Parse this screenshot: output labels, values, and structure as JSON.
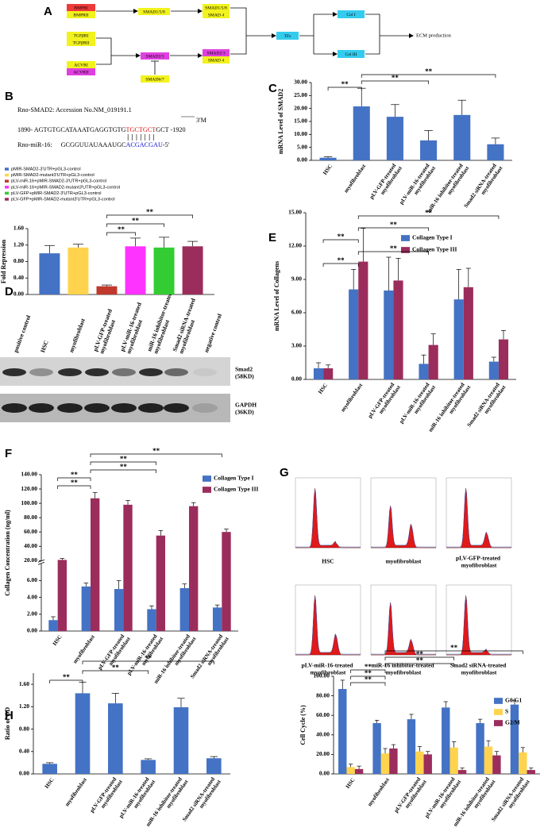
{
  "pathway": {
    "panel": "A",
    "nodes": [
      {
        "label": "BMPRI",
        "color": "#ee3a3a"
      },
      {
        "label": "BMPRII",
        "color": "#f2f21e"
      },
      {
        "label": "SMAD1/5/8",
        "color": "#f2f21e"
      },
      {
        "label": "SMAD1/5/8",
        "color": "#f2f21e"
      },
      {
        "label": "SMAD 4",
        "color": "#f2f21e"
      },
      {
        "label": "TGFβRI",
        "color": "#f2f21e"
      },
      {
        "label": "TGFβRII",
        "color": "#f2f21e"
      },
      {
        "label": "ACVRI",
        "color": "#f2f21e"
      },
      {
        "label": "ACVRII",
        "color": "#e040e0"
      },
      {
        "label": "SMAD2/3",
        "color": "#e040e0"
      },
      {
        "label": "SMAD6/7",
        "color": "#f2f21e"
      },
      {
        "label": "SMAD2/3",
        "color": "#e040e0"
      },
      {
        "label": "SMAD 4",
        "color": "#f2f21e"
      },
      {
        "label": "TFs",
        "color": "#33ccee"
      },
      {
        "label": "Col I",
        "color": "#33ccee"
      },
      {
        "label": "Col III",
        "color": "#33ccee"
      }
    ],
    "output": "ECM production"
  },
  "sequence": {
    "panel": "B",
    "accession": "Rno-SMAD2: Accession No.NM_019191.1",
    "end": "3'M",
    "target": {
      "prefix": "1890- AGTGTGCATAAATGAGGTGTG",
      "site": "TGCTGCT",
      "suffix": "GCT -1920"
    },
    "mirna": {
      "name": "Rno-miR-16:",
      "prefix": "GCGGUUAUAAAUGC",
      "seed": "ACGACGAU",
      "suffix": "-5'"
    }
  },
  "western_blot": {
    "panel": "D",
    "lanes": [
      "positive control",
      "HSC",
      "myofibroblast",
      "pLV-GFP-treated\nmyofibroblast",
      "pLV-miR-16-treated\nmyofibroblast",
      "miR-16 inhibitor-treated\nmyofibroblast",
      "Smad2 siRNA-treated\nmyofibroblast",
      "negative control"
    ],
    "bands": [
      "Smad2\n(58KD)",
      "GAPDH\n(36KD)"
    ]
  },
  "cell_cycle_histograms": {
    "panel": "G",
    "labels": [
      "HSC",
      "myofibroblast",
      "pLV-GFP-treated\nmyofibroblast",
      "pLV-miR-16-treated\nmyofibroblast",
      "miR-16 inhibitor-treated\nmyofibroblast",
      "Smad2 siRNA-treated\nmyofibroblast"
    ]
  },
  "chart_data": [
    {
      "type": "bar",
      "ylabel": "Fold Repression",
      "categories": [
        null
      ],
      "series": [
        {
          "name": "pMIR-SMAD2-3'UTR+pGL3-control",
          "color": "#4472c4",
          "values": [
            1.0
          ],
          "errors": [
            0.19
          ]
        },
        {
          "name": "pMIR-SMAD2-mutant3'UTR+pGL3-control",
          "color": "#ffd34d",
          "values": [
            1.14
          ],
          "errors": [
            0.08
          ]
        },
        {
          "name": "pLV-miR-16+pMIR-SMAD2-3'UTR+pGL3-control",
          "color": "#c0392b",
          "values": [
            0.2
          ],
          "errors": [
            0.03
          ]
        },
        {
          "name": "pLV-miR-16+pMIR-SMAD2-mutant3'UTR+pGL3-control",
          "color": "#ff33ff",
          "values": [
            1.17
          ],
          "errors": [
            0.2
          ]
        },
        {
          "name": "pLV-GFP+pMIR-SMAD2-3'UTR+pGL3-control",
          "color": "#33cc33",
          "values": [
            1.14
          ],
          "errors": [
            0.25
          ]
        },
        {
          "name": "pLV-GFP+pMIR-SMAD2-mutant3'UTR+pGL3-control",
          "color": "#9b2d5c",
          "values": [
            1.17
          ],
          "errors": [
            0.12
          ]
        }
      ],
      "ylim": [
        0,
        1.6
      ],
      "yticks": [
        {
          "value": 0,
          "label": "0.00"
        },
        {
          "value": 0.4,
          "label": "0.40"
        },
        {
          "value": 0.8,
          "label": "0.80"
        },
        {
          "value": 1.2,
          "label": "1.20"
        },
        {
          "value": 1.6,
          "label": "1.60"
        }
      ],
      "annotations": [
        {
          "text": "**",
          "between": [
            2,
            3
          ]
        },
        {
          "text": "**",
          "between": [
            2,
            4
          ]
        },
        {
          "text": "**",
          "between": [
            2,
            5
          ]
        }
      ]
    },
    {
      "type": "bar",
      "panel": "C",
      "ylabel": "mRNA Level of SMAD2",
      "categories": [
        "HSC",
        "myofibroblast",
        "pLV-GFP-treated\nmyofibroblast",
        "pLV-miR-16-treated\nmyofibroblast",
        "miR-16 inhibitor-treated\nmyofibroblast",
        "Smad2 siRNA-treated\nmyofibroblast"
      ],
      "values": [
        1.0,
        20.8,
        16.8,
        7.7,
        17.5,
        6.2
      ],
      "errors": [
        0.4,
        7.0,
        4.7,
        3.8,
        5.7,
        2.4
      ],
      "color": "#4472c4",
      "ylim": [
        0,
        30
      ],
      "yticks": [
        {
          "value": 0,
          "label": "0.00"
        },
        {
          "value": 5,
          "label": "5.00"
        },
        {
          "value": 10,
          "label": "10.00"
        },
        {
          "value": 15,
          "label": "15.00"
        },
        {
          "value": 20,
          "label": "20.00"
        },
        {
          "value": 25,
          "label": "25.00"
        },
        {
          "value": 30,
          "label": "30.00"
        }
      ],
      "annotations": [
        {
          "text": "**",
          "between": [
            0,
            1
          ]
        },
        {
          "text": "**",
          "between": [
            1,
            3
          ]
        },
        {
          "text": "**",
          "between": [
            1,
            5
          ]
        }
      ]
    },
    {
      "type": "bar",
      "panel": "E",
      "ylabel": "mRNA Level of Collagens",
      "categories": [
        "HSC",
        "myofibroblast",
        "pLV-GFP-treated\nmyofibroblast",
        "pLV-miR-16-treated\nmyofibroblast",
        "miR-16 inhibitor-treated\nmyofibroblast",
        "Smad2 siRNA-treated\nmyofibroblast"
      ],
      "series": [
        {
          "name": "Collagen Type I",
          "color": "#4472c4",
          "values": [
            1.0,
            8.1,
            8.0,
            1.4,
            7.2,
            1.6
          ],
          "errors": [
            0.5,
            1.8,
            3.0,
            0.8,
            2.7,
            0.4
          ]
        },
        {
          "name": "Collagen Type III",
          "color": "#9b2d5c",
          "values": [
            1.0,
            10.6,
            8.9,
            3.1,
            8.3,
            3.6
          ],
          "errors": [
            0.3,
            3.0,
            2.0,
            1.0,
            1.7,
            0.8
          ]
        }
      ],
      "ylim": [
        0,
        15
      ],
      "yticks": [
        {
          "value": 0,
          "label": "0.00"
        },
        {
          "value": 3,
          "label": "3.00"
        },
        {
          "value": 6,
          "label": "6.00"
        },
        {
          "value": 9,
          "label": "9.00"
        },
        {
          "value": 12,
          "label": "12.00"
        },
        {
          "value": 15,
          "label": "15.00"
        }
      ],
      "annotations": [
        {
          "text": "**",
          "between": [
            0,
            1
          ]
        },
        {
          "text": "**",
          "between": [
            1,
            3
          ]
        },
        {
          "text": "**",
          "between": [
            0,
            1
          ]
        },
        {
          "text": "**",
          "between": [
            1,
            3
          ]
        },
        {
          "text": "**",
          "between": [
            1,
            5
          ]
        }
      ]
    },
    {
      "type": "bar",
      "panel": "F",
      "ylabel": "Collagen Concentration (ng/ml)",
      "categories": [
        "HSC",
        "myofibroblast",
        "pLV-GFP-treated\nmyofibroblast",
        "pLV-miR-16-treated\nmyofibroblast",
        "miR-16 inhibitor-treated\nmyofibroblast",
        "Smad2 siRNA-treated\nmyofibroblast"
      ],
      "series": [
        {
          "name": "Collagen Type I",
          "color": "#4472c4",
          "values": [
            1.3,
            5.3,
            5.0,
            2.6,
            5.1,
            2.8
          ],
          "errors": [
            0.4,
            0.4,
            1.0,
            0.4,
            0.5,
            0.3
          ]
        },
        {
          "name": "Collagen Type III",
          "color": "#9b2d5c",
          "values": [
            21,
            107,
            98,
            55,
            96,
            60
          ],
          "errors": [
            2,
            8,
            6,
            7,
            5,
            4
          ]
        }
      ],
      "ylim": [
        0,
        140
      ],
      "axis_break": [
        8,
        20
      ],
      "yticks": [
        {
          "value": 0,
          "label": "0.00"
        },
        {
          "value": 2,
          "label": "2.00"
        },
        {
          "value": 4,
          "label": "4.00"
        },
        {
          "value": 6,
          "label": "6.00"
        },
        {
          "value": 20,
          "label": "20.00"
        },
        {
          "value": 40,
          "label": "40.00"
        },
        {
          "value": 60,
          "label": "60.00"
        },
        {
          "value": 80,
          "label": "80.00"
        },
        {
          "value": 100,
          "label": "100.00"
        },
        {
          "value": 120,
          "label": "120.00"
        },
        {
          "value": 140,
          "label": "140.00"
        }
      ],
      "annotations": [
        {
          "text": "**",
          "between": [
            0,
            1
          ]
        },
        {
          "text": "**",
          "between": [
            0,
            1
          ]
        },
        {
          "text": "**",
          "between": [
            1,
            3
          ]
        },
        {
          "text": "**",
          "between": [
            1,
            3
          ]
        },
        {
          "text": "**",
          "between": [
            1,
            5
          ]
        }
      ]
    },
    {
      "type": "bar",
      "panel": "H",
      "ylabel": "Ratio of OD",
      "categories": [
        "HSC",
        "myofibroblast",
        "pLV-GFP-treated\nmyofibroblast",
        "pLV-miR-16-treated\nmyofibroblast",
        "miR-16 inhibitor-treated\nmyofibroblast",
        "Smad2 siRNA-treated\nmyofibroblast"
      ],
      "values": [
        0.18,
        1.44,
        1.26,
        0.25,
        1.19,
        0.28
      ],
      "errors": [
        0.02,
        0.2,
        0.18,
        0.02,
        0.16,
        0.03
      ],
      "color": "#4472c4",
      "ylim": [
        0,
        1.8
      ],
      "yticks": [
        {
          "value": 0,
          "label": "0.00"
        },
        {
          "value": 0.4,
          "label": "0.40"
        },
        {
          "value": 0.8,
          "label": "0.80"
        },
        {
          "value": 1.2,
          "label": "1.20"
        },
        {
          "value": 1.6,
          "label": "1.60"
        }
      ],
      "annotations": [
        {
          "text": "**",
          "between": [
            0,
            1
          ]
        },
        {
          "text": "**",
          "between": [
            1,
            3
          ]
        },
        {
          "text": "**",
          "between": [
            1,
            5
          ]
        }
      ]
    },
    {
      "type": "bar",
      "ylabel": "Cell Cycle (%)",
      "categories": [
        "HSC",
        "myofibroblast",
        "pLV-GFP-treated\nmyofibroblast",
        "pLV-miR-16-treated\nmyofibroblast",
        "miR-16 inhibitor-treated\nmyofibroblast",
        "Smad2 siRNA-treated\nmyofibroblast"
      ],
      "series": [
        {
          "name": "G0/G1",
          "color": "#4472c4",
          "values": [
            87,
            52,
            56,
            68,
            52,
            71
          ],
          "errors": [
            9,
            3,
            5,
            6,
            4,
            4
          ]
        },
        {
          "name": "S",
          "color": "#ffd34d",
          "values": [
            7,
            21,
            23,
            27,
            28,
            22
          ],
          "errors": [
            3,
            5,
            5,
            6,
            6,
            5
          ]
        },
        {
          "name": "G2/M",
          "color": "#9b2d5c",
          "values": [
            5,
            26,
            20,
            4,
            19,
            4
          ],
          "errors": [
            3,
            4,
            3,
            2,
            4,
            2
          ]
        }
      ],
      "ylim": [
        0,
        100
      ],
      "yticks": [
        {
          "value": 0,
          "label": "0.00"
        },
        {
          "value": 20,
          "label": "20.00"
        },
        {
          "value": 40,
          "label": "40.00"
        },
        {
          "value": 60,
          "label": "60.00"
        },
        {
          "value": 80,
          "label": "80.00"
        },
        {
          "value": 100,
          "label": "100.00"
        }
      ],
      "annotations": [
        {
          "text": "**",
          "between": [
            0,
            1
          ]
        },
        {
          "text": "**",
          "between": [
            0,
            1
          ]
        },
        {
          "text": "**",
          "between": [
            0,
            1
          ]
        },
        {
          "text": "**",
          "between": [
            1,
            3
          ]
        },
        {
          "text": "**",
          "between": [
            1,
            3
          ]
        },
        {
          "text": "**",
          "between": [
            1,
            5
          ]
        }
      ]
    }
  ]
}
